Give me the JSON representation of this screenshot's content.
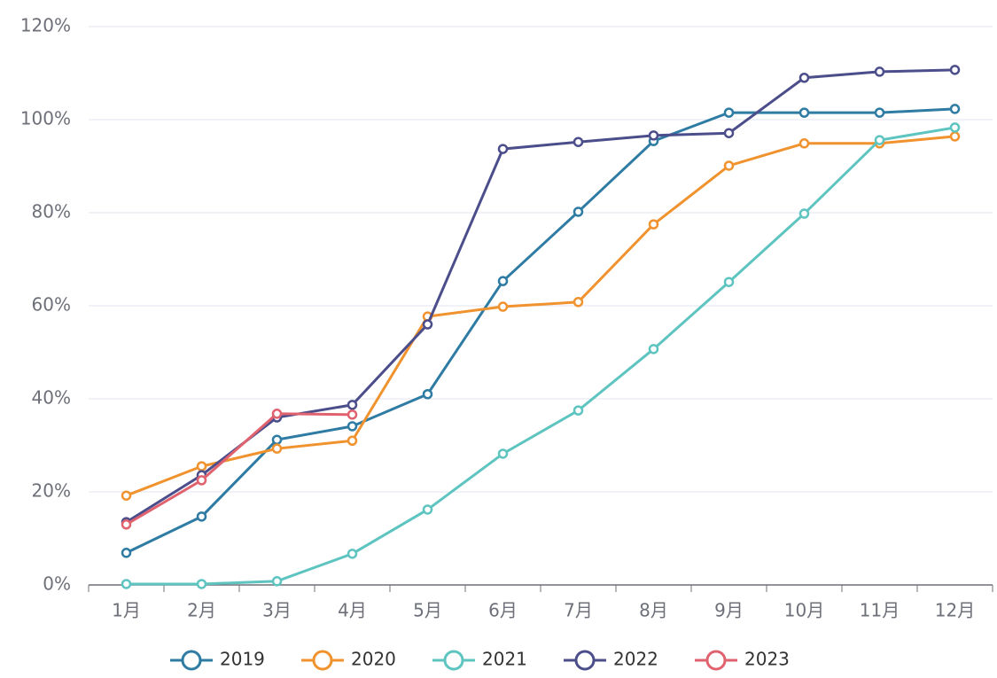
{
  "chart_data": {
    "type": "line",
    "categories": [
      "1月",
      "2月",
      "3月",
      "4月",
      "5月",
      "6月",
      "7月",
      "8月",
      "9月",
      "10月",
      "11月",
      "12月"
    ],
    "series": [
      {
        "name": "2019",
        "color": "#2e7ba3",
        "values": [
          6.9,
          14.7,
          31.2,
          34.1,
          41,
          65.3,
          80.2,
          95.4,
          101.5,
          101.5,
          101.5,
          102.3
        ]
      },
      {
        "name": "2020",
        "color": "#f0922e",
        "values": [
          19.2,
          25.5,
          29.3,
          31,
          57.7,
          59.8,
          60.8,
          77.5,
          90.1,
          94.9,
          94.9,
          96.4
        ]
      },
      {
        "name": "2021",
        "color": "#5ec4c0",
        "values": [
          0.2,
          0.2,
          0.8,
          6.7,
          16.2,
          28.2,
          37.5,
          50.7,
          65.1,
          79.8,
          95.6,
          98.3
        ]
      },
      {
        "name": "2022",
        "color": "#4c4e8b",
        "values": [
          13.5,
          23.6,
          36,
          38.7,
          56,
          93.7,
          95.2,
          96.6,
          97.1,
          109,
          110.3,
          110.7
        ]
      },
      {
        "name": "2023",
        "color": "#e0626f",
        "values": [
          13,
          22.5,
          36.8,
          36.6,
          null,
          null,
          null,
          null,
          null,
          null,
          null,
          null
        ]
      }
    ],
    "ylim": [
      0,
      120
    ],
    "yticks": [
      {
        "value": 0,
        "label": "0%"
      },
      {
        "value": 20,
        "label": "20%"
      },
      {
        "value": 40,
        "label": "40%"
      },
      {
        "value": 60,
        "label": "60%"
      },
      {
        "value": 80,
        "label": "80%"
      },
      {
        "value": 100,
        "label": "100%"
      },
      {
        "value": 120,
        "label": "120%"
      }
    ],
    "grid": true
  }
}
